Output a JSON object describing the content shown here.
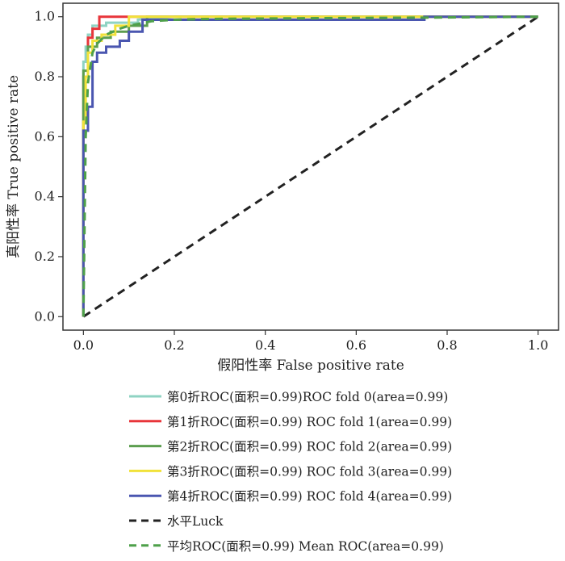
{
  "chart_data": {
    "type": "line",
    "xlabel": "假阳性率 False positive rate",
    "ylabel": "真阳性率 True positive rate",
    "xlim": [
      0,
      1
    ],
    "ylim": [
      0,
      1
    ],
    "xticks": [
      "0.0",
      "0.2",
      "0.4",
      "0.6",
      "0.8",
      "1.0"
    ],
    "yticks": [
      "0.0",
      "0.2",
      "0.4",
      "0.6",
      "0.8",
      "1.0"
    ],
    "grid": false,
    "legend_position": "bottom",
    "series": [
      {
        "name": "第0折ROC(面积=0.99)ROC fold 0(area=0.99)",
        "color": "#8fd3c3",
        "style": "solid",
        "x": [
          0,
          0,
          0.005,
          0.005,
          0.01,
          0.01,
          0.02,
          0.02,
          0.05,
          0.05,
          0.12,
          0.12,
          0.2,
          1.0
        ],
        "y": [
          0,
          0.85,
          0.85,
          0.9,
          0.9,
          0.94,
          0.94,
          0.97,
          0.97,
          0.98,
          0.98,
          0.99,
          1.0,
          1.0
        ]
      },
      {
        "name": "第1折ROC(面积=0.99) ROC fold 1(area=0.99)",
        "color": "#e8353a",
        "style": "solid",
        "x": [
          0,
          0,
          0.01,
          0.01,
          0.02,
          0.02,
          0.035,
          0.035,
          1.0
        ],
        "y": [
          0,
          0.8,
          0.8,
          0.93,
          0.93,
          0.96,
          0.96,
          1.0,
          1.0
        ]
      },
      {
        "name": "第2折ROC(面积=0.99) ROC fold 2(area=0.99)",
        "color": "#5c9e4f",
        "style": "solid",
        "x": [
          0,
          0,
          0.01,
          0.01,
          0.03,
          0.03,
          0.06,
          0.06,
          0.1,
          0.1,
          0.14,
          0.14,
          1.0
        ],
        "y": [
          0,
          0.82,
          0.82,
          0.9,
          0.9,
          0.93,
          0.93,
          0.95,
          0.95,
          0.97,
          0.97,
          1.0,
          1.0
        ]
      },
      {
        "name": "第3折ROC(面积=0.99) ROC fold 3(area=0.99)",
        "color": "#f1e23a",
        "style": "solid",
        "x": [
          0,
          0,
          0.005,
          0.005,
          0.01,
          0.01,
          0.02,
          0.02,
          0.04,
          0.04,
          0.07,
          0.07,
          0.1,
          0.1,
          1.0
        ],
        "y": [
          0,
          0.65,
          0.65,
          0.8,
          0.8,
          0.88,
          0.88,
          0.92,
          0.92,
          0.94,
          0.94,
          0.97,
          0.97,
          1.0,
          1.0
        ]
      },
      {
        "name": "第4折ROC(面积=0.99) ROC fold 4(area=0.99)",
        "color": "#4a56b0",
        "style": "solid",
        "x": [
          0,
          0,
          0.01,
          0.01,
          0.02,
          0.02,
          0.03,
          0.03,
          0.05,
          0.05,
          0.08,
          0.08,
          0.1,
          0.1,
          0.13,
          0.13,
          0.75,
          0.75,
          1.0
        ],
        "y": [
          0,
          0.62,
          0.62,
          0.7,
          0.7,
          0.85,
          0.85,
          0.88,
          0.88,
          0.9,
          0.9,
          0.92,
          0.92,
          0.95,
          0.95,
          0.99,
          0.99,
          1.0,
          1.0
        ]
      },
      {
        "name": "水平Luck",
        "color": "#222222",
        "style": "dashed",
        "x": [
          0,
          1
        ],
        "y": [
          0,
          1
        ]
      },
      {
        "name": "平均ROC(面积=0.99) Mean ROC(area=0.99)",
        "color": "#4ea04a",
        "style": "dashed",
        "x": [
          0,
          0.005,
          0.01,
          0.02,
          0.03,
          0.05,
          0.08,
          0.1,
          0.15,
          0.2,
          0.3,
          0.5,
          0.75,
          1.0
        ],
        "y": [
          0,
          0.6,
          0.78,
          0.88,
          0.91,
          0.94,
          0.96,
          0.97,
          0.985,
          0.99,
          0.993,
          0.995,
          0.997,
          1.0
        ]
      }
    ]
  }
}
